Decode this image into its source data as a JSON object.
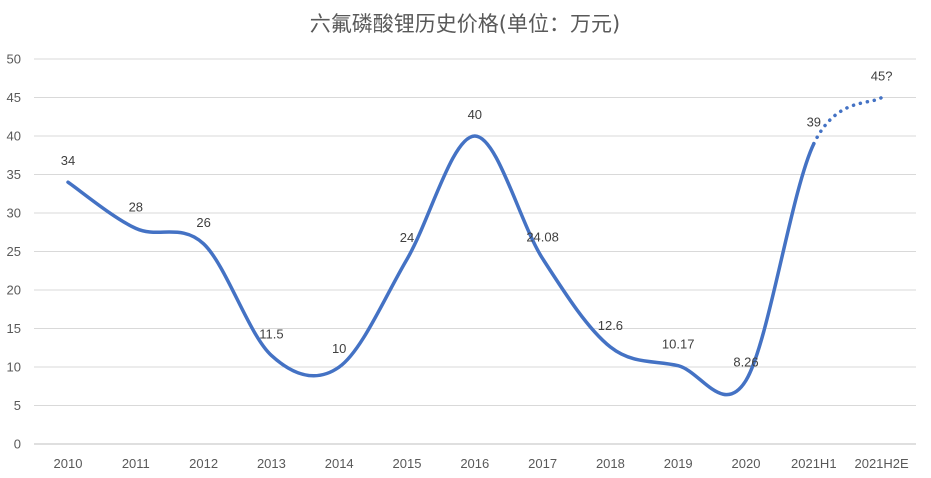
{
  "chart_data": {
    "type": "line",
    "title": "六氟磷酸锂历史价格(单位：万元)",
    "xlabel": "",
    "ylabel": "",
    "categories": [
      "2010",
      "2011",
      "2012",
      "2013",
      "2014",
      "2015",
      "2016",
      "2017",
      "2018",
      "2019",
      "2020",
      "2021H1",
      "2021H2E"
    ],
    "values": [
      34,
      28,
      26,
      11.5,
      10,
      24,
      40,
      24.08,
      12.6,
      10.17,
      8.26,
      39,
      45
    ],
    "data_labels": [
      "34",
      "28",
      "26",
      "11.5",
      "10",
      "24",
      "40",
      "24.08",
      "12.6",
      "10.17",
      "8.26",
      "39",
      "45?"
    ],
    "estimated_last_point": true,
    "ylim": [
      0,
      50
    ],
    "yticks": [
      0,
      5,
      10,
      15,
      20,
      25,
      30,
      35,
      40,
      45,
      50
    ],
    "grid": true,
    "legend": "none",
    "line_color": "#4472c4"
  }
}
